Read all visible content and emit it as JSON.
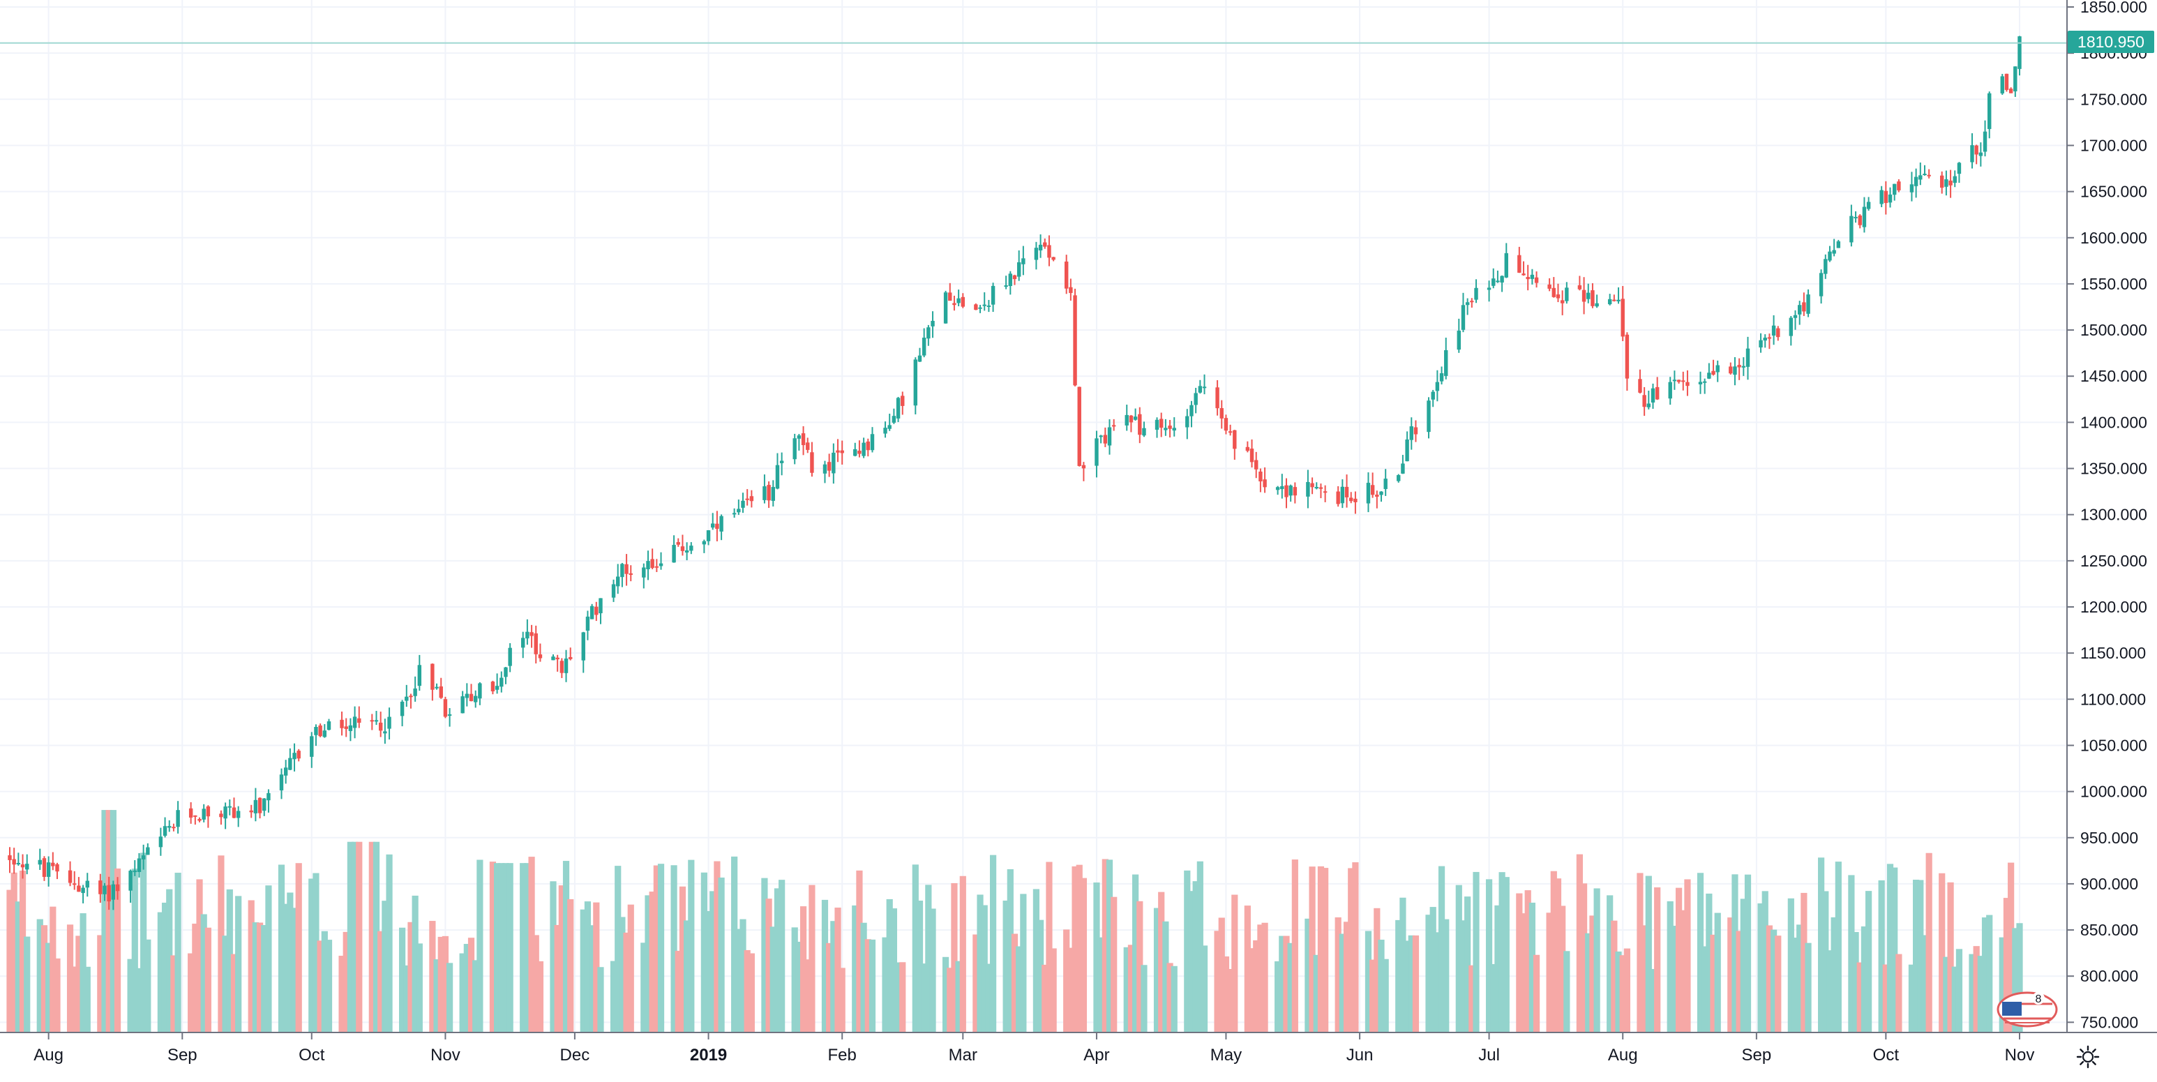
{
  "chart_data": {
    "type": "candlestick",
    "ylim": [
      740,
      1850
    ],
    "y_ticks": [
      "1850.000",
      "1800.000",
      "1750.000",
      "1700.000",
      "1650.000",
      "1600.000",
      "1550.000",
      "1500.000",
      "1450.000",
      "1400.000",
      "1350.000",
      "1300.000",
      "1250.000",
      "1200.000",
      "1150.000",
      "1100.000",
      "1050.000",
      "1000.000",
      "950.000",
      "900.000",
      "850.000",
      "800.000",
      "750.000"
    ],
    "x_ticks": [
      {
        "label": "Aug",
        "date": "2018-08-01",
        "bold": false
      },
      {
        "label": "Sep",
        "date": "2018-09-01",
        "bold": false
      },
      {
        "label": "Oct",
        "date": "2018-10-01",
        "bold": false
      },
      {
        "label": "Nov",
        "date": "2018-11-01",
        "bold": false
      },
      {
        "label": "Dec",
        "date": "2018-12-01",
        "bold": false
      },
      {
        "label": "2019",
        "date": "2019-01-01",
        "bold": true
      },
      {
        "label": "Feb",
        "date": "2019-02-01",
        "bold": false
      },
      {
        "label": "Mar",
        "date": "2019-03-01",
        "bold": false
      },
      {
        "label": "Apr",
        "date": "2019-04-01",
        "bold": false
      },
      {
        "label": "May",
        "date": "2019-05-01",
        "bold": false
      },
      {
        "label": "Jun",
        "date": "2019-06-01",
        "bold": false
      },
      {
        "label": "Jul",
        "date": "2019-07-01",
        "bold": false
      },
      {
        "label": "Aug",
        "date": "2019-08-01",
        "bold": false
      },
      {
        "label": "Sep",
        "date": "2019-09-01",
        "bold": false
      },
      {
        "label": "Oct",
        "date": "2019-10-01",
        "bold": false
      },
      {
        "label": "Nov",
        "date": "2019-11-01",
        "bold": false
      }
    ],
    "last_price": "1810.950",
    "date_range": [
      "2018-07-23",
      "2019-11-01"
    ],
    "price_anchors": [
      [
        "2018-07-23",
        930
      ],
      [
        "2018-08-14",
        888
      ],
      [
        "2018-08-20",
        910
      ],
      [
        "2018-09-01",
        975
      ],
      [
        "2018-09-20",
        982
      ],
      [
        "2018-10-01",
        1065
      ],
      [
        "2018-10-20",
        1075
      ],
      [
        "2018-10-27",
        1140
      ],
      [
        "2018-11-01",
        1090
      ],
      [
        "2018-11-14",
        1120
      ],
      [
        "2018-11-18",
        1175
      ],
      [
        "2018-11-28",
        1130
      ],
      [
        "2018-12-10",
        1235
      ],
      [
        "2018-12-22",
        1255
      ],
      [
        "2018-12-31",
        1275
      ],
      [
        "2019-01-15",
        1325
      ],
      [
        "2019-01-20",
        1395
      ],
      [
        "2019-01-26",
        1345
      ],
      [
        "2019-02-12",
        1395
      ],
      [
        "2019-02-25",
        1540
      ],
      [
        "2019-03-05",
        1525
      ],
      [
        "2019-03-20",
        1595
      ],
      [
        "2019-03-26",
        1545
      ],
      [
        "2019-03-28",
        1345
      ],
      [
        "2019-04-05",
        1400
      ],
      [
        "2019-04-18",
        1390
      ],
      [
        "2019-04-26",
        1445
      ],
      [
        "2019-05-01",
        1385
      ],
      [
        "2019-05-12",
        1330
      ],
      [
        "2019-05-28",
        1320
      ],
      [
        "2019-06-08",
        1330
      ],
      [
        "2019-06-25",
        1520
      ],
      [
        "2019-07-06",
        1580
      ],
      [
        "2019-07-17",
        1540
      ],
      [
        "2019-07-31",
        1530
      ],
      [
        "2019-08-03",
        1420
      ],
      [
        "2019-08-20",
        1450
      ],
      [
        "2019-08-31",
        1475
      ],
      [
        "2019-09-15",
        1545
      ],
      [
        "2019-09-20",
        1600
      ],
      [
        "2019-10-05",
        1665
      ],
      [
        "2019-10-14",
        1655
      ],
      [
        "2019-10-23",
        1700
      ],
      [
        "2019-10-26",
        1775
      ],
      [
        "2019-10-30",
        1760
      ],
      [
        "2019-11-01",
        1810
      ]
    ],
    "volume_scale": [
      750,
      980
    ]
  },
  "icons": {
    "settings": "gear-icon",
    "tradingview_logo": "flag-logo-icon"
  },
  "colors": {
    "up": "#26a69a",
    "down": "#ef5350",
    "volume_up": "#93d3cc",
    "volume_down": "#f6a8a6",
    "last_price_tag": "#26a69a",
    "grid": "#f0f3fa",
    "axis_line": "#6f7380"
  }
}
